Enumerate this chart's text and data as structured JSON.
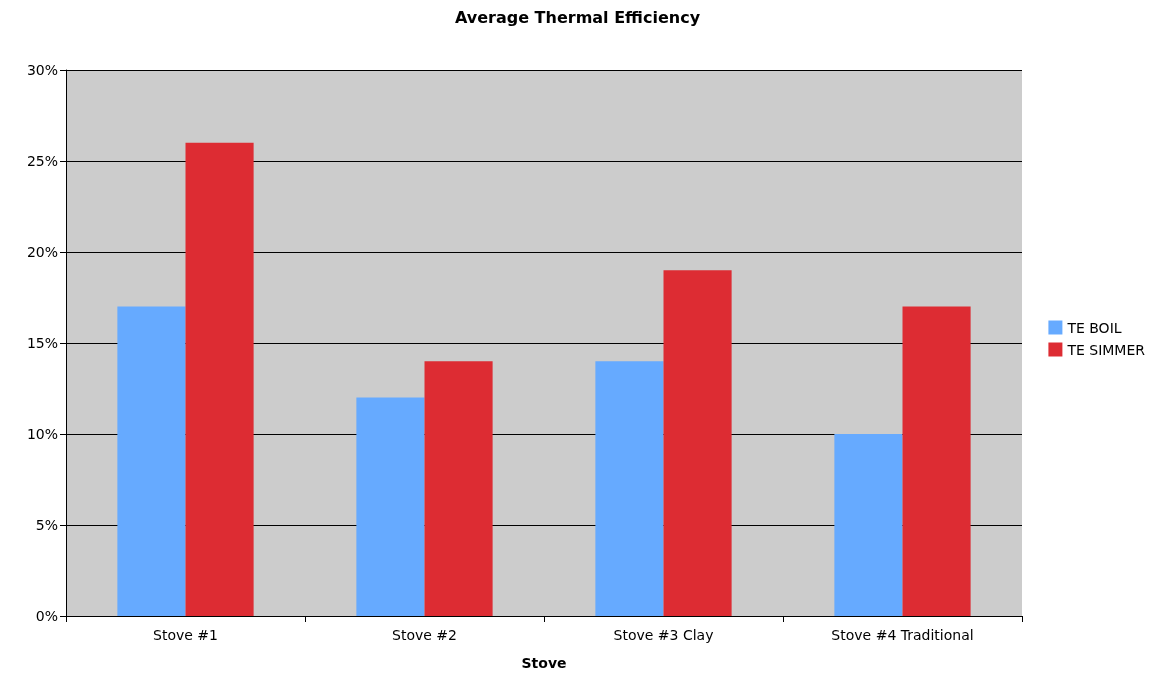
{
  "chart_data": {
    "type": "bar",
    "title": "Average Thermal Efficiency",
    "xlabel": "Stove",
    "categories": [
      "Stove #1",
      "Stove #2",
      "Stove #3 Clay",
      "Stove #4 Traditional"
    ],
    "series": [
      {
        "name": "TE BOIL",
        "color": "#66aaff",
        "values": [
          17,
          12,
          14,
          10
        ]
      },
      {
        "name": "TE SIMMER",
        "color": "#dd2c33",
        "values": [
          26,
          14,
          19,
          17
        ]
      }
    ],
    "ylim": [
      0,
      30
    ],
    "yticks": [
      {
        "value": 0,
        "label": "0%"
      },
      {
        "value": 5,
        "label": "5%"
      },
      {
        "value": 10,
        "label": "10%"
      },
      {
        "value": 15,
        "label": "15%"
      },
      {
        "value": 20,
        "label": "20%"
      },
      {
        "value": 25,
        "label": "25%"
      },
      {
        "value": 30,
        "label": "30%"
      }
    ],
    "grid": "y",
    "legend": "right"
  }
}
